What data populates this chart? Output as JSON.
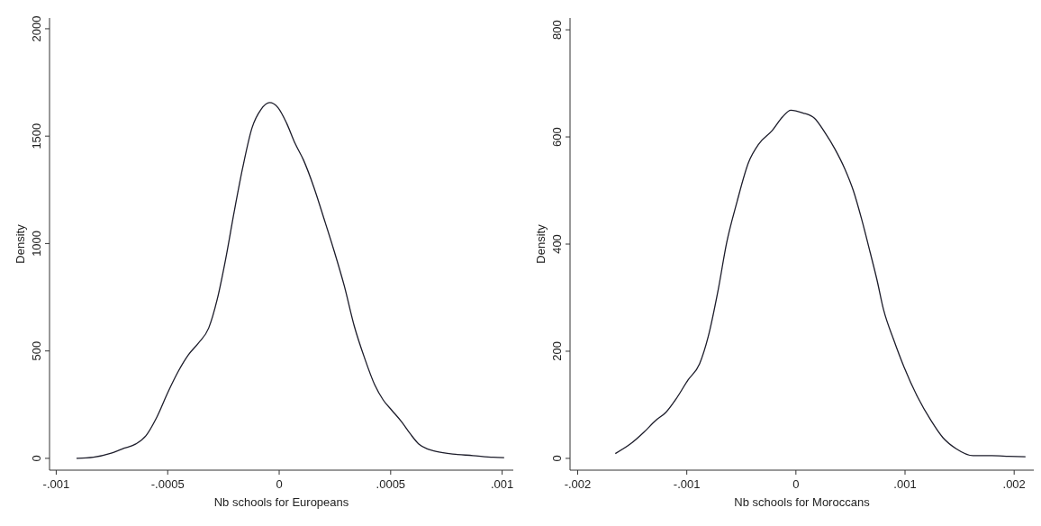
{
  "chart_data": [
    {
      "type": "line",
      "xlabel": "Nb schools for Europeans",
      "ylabel": "Density",
      "xlim": [
        -0.00103,
        0.00105
      ],
      "ylim": [
        -55,
        2050
      ],
      "xticks": [
        {
          "value": -0.001,
          "label": "-.001"
        },
        {
          "value": -0.0005,
          "label": "-.0005"
        },
        0,
        {
          "value": 0.0005,
          "label": ".0005"
        },
        {
          "value": 0.001,
          "label": ".001"
        }
      ],
      "yticks": [
        0,
        500,
        1000,
        1500,
        2000
      ],
      "series": [
        {
          "color": "#1c1c2a",
          "x": [
            -0.000909,
            -0.000833,
            -0.000757,
            -0.000696,
            -0.000643,
            -0.000597,
            -0.000552,
            -0.000498,
            -0.000453,
            -0.000407,
            -0.000362,
            -0.000316,
            -0.000278,
            -0.00024,
            -0.000202,
            -0.000164,
            -0.000122,
            -8.1e-05,
            -4.3e-05,
            -5e-06,
            3.3e-05,
            7.1e-05,
            0.000109,
            0.000155,
            0.000201,
            0.000246,
            0.000292,
            0.000337,
            0.000383,
            0.000429,
            0.000467,
            0.000505,
            0.00055,
            0.000588,
            0.000626,
            0.000664,
            0.000702,
            0.000778,
            0.000869,
            0.00096,
            0.001009
          ],
          "values": [
            0,
            5,
            23,
            47,
            67,
            106,
            185,
            310,
            404,
            482,
            537,
            607,
            740,
            928,
            1147,
            1351,
            1538,
            1625,
            1656,
            1632,
            1561,
            1467,
            1389,
            1264,
            1116,
            967,
            803,
            615,
            467,
            341,
            271,
            224,
            169,
            114,
            67,
            44,
            33,
            20,
            13,
            5,
            3
          ]
        }
      ]
    },
    {
      "type": "line",
      "xlabel": "Nb schools for Moroccans",
      "ylabel": "Density",
      "xlim": [
        -0.00207,
        0.00218
      ],
      "ylim": [
        -22,
        822
      ],
      "xticks": [
        {
          "value": -0.002,
          "label": "-.002"
        },
        {
          "value": -0.001,
          "label": "-.001"
        },
        0,
        {
          "value": 0.001,
          "label": ".001"
        },
        {
          "value": 0.002,
          "label": ".002"
        }
      ],
      "yticks": [
        0,
        200,
        400,
        600,
        800
      ],
      "series": [
        {
          "color": "#1c1c2a",
          "x": [
            -0.001655,
            -0.001516,
            -0.001392,
            -0.001284,
            -0.001191,
            -0.001098,
            -0.00099,
            -0.000882,
            -0.000804,
            -0.000712,
            -0.000634,
            -0.000541,
            -0.000433,
            -0.00034,
            -0.000217,
            -0.000124,
            -4.6e-05,
            6.2e-05,
            0.00017,
            0.000263,
            0.000356,
            0.000449,
            0.000526,
            0.000603,
            0.000681,
            0.000742,
            0.000804,
            0.000897,
            0.00099,
            0.001114,
            0.001237,
            0.001346,
            0.001469,
            0.001624,
            0.001794,
            0.001949,
            0.002104
          ],
          "values": [
            9,
            27,
            49,
            71,
            86,
            111,
            146,
            177,
            227,
            315,
            403,
            478,
            553,
            587,
            612,
            637,
            650,
            645,
            635,
            609,
            578,
            540,
            500,
            446,
            384,
            334,
            277,
            221,
            171,
            115,
            71,
            39,
            18,
            5,
            5,
            4,
            3
          ]
        }
      ]
    }
  ]
}
